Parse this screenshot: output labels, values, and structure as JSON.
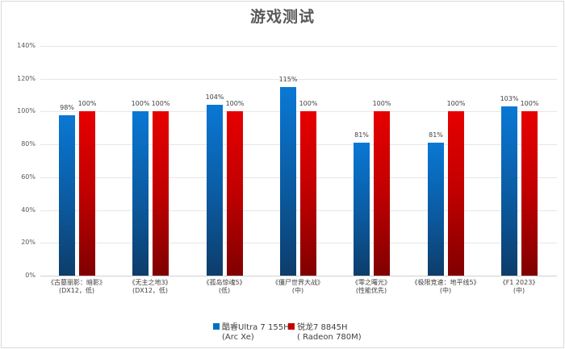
{
  "chart_data": {
    "type": "bar",
    "title": "游戏测试",
    "xlabel": "",
    "ylabel": "",
    "ylim": [
      0,
      140
    ],
    "yticks": [
      "0%",
      "20%",
      "40%",
      "60%",
      "80%",
      "100%",
      "120%",
      "140%"
    ],
    "grid": true,
    "legend_position": "bottom",
    "categories": [
      "《古墓丽影：暗影》(DX12，低)",
      "《无主之地3》(DX12，低)",
      "《孤岛惊魂5》(低)",
      "《僵尸世界大战》(中)",
      "《零之曙光》(性能优先)",
      "《极限竞速：地平线5》(中)",
      "《F1 2023》(中)"
    ],
    "category_lines": [
      [
        "《古墓丽影：暗影》",
        "(DX12，低)"
      ],
      [
        "《无主之地3》",
        "(DX12，低)"
      ],
      [
        "《孤岛惊魂5》",
        "(低)"
      ],
      [
        "《僵尸世界大战》",
        "(中)"
      ],
      [
        "《零之曙光》",
        "(性能优先)"
      ],
      [
        "《极限竞速：地平线5》",
        "(中)"
      ],
      [
        "《F1 2023》",
        "(中)"
      ]
    ],
    "series": [
      {
        "name": "酷睿Ultra  7 155H (Arc Xe)",
        "color": "#0070c0",
        "values": [
          98,
          100,
          104,
          115,
          81,
          81,
          103
        ],
        "labels": [
          "98%",
          "100%",
          "104%",
          "115%",
          "81%",
          "81%",
          "103%"
        ]
      },
      {
        "name": "锐龙7 8845H ( Radeon 780M)",
        "color": "#c00000",
        "values": [
          100,
          100,
          100,
          100,
          100,
          100,
          100
        ],
        "labels": [
          "100%",
          "100%",
          "100%",
          "100%",
          "100%",
          "100%",
          "100%"
        ]
      }
    ]
  },
  "legend": {
    "items": [
      {
        "line1": "酷睿Ultra  7 155H",
        "line2": "(Arc Xe)",
        "color": "#0070c0"
      },
      {
        "line1": "锐龙7 8845H",
        "line2": "( Radeon 780M)",
        "color": "#c00000"
      }
    ]
  }
}
